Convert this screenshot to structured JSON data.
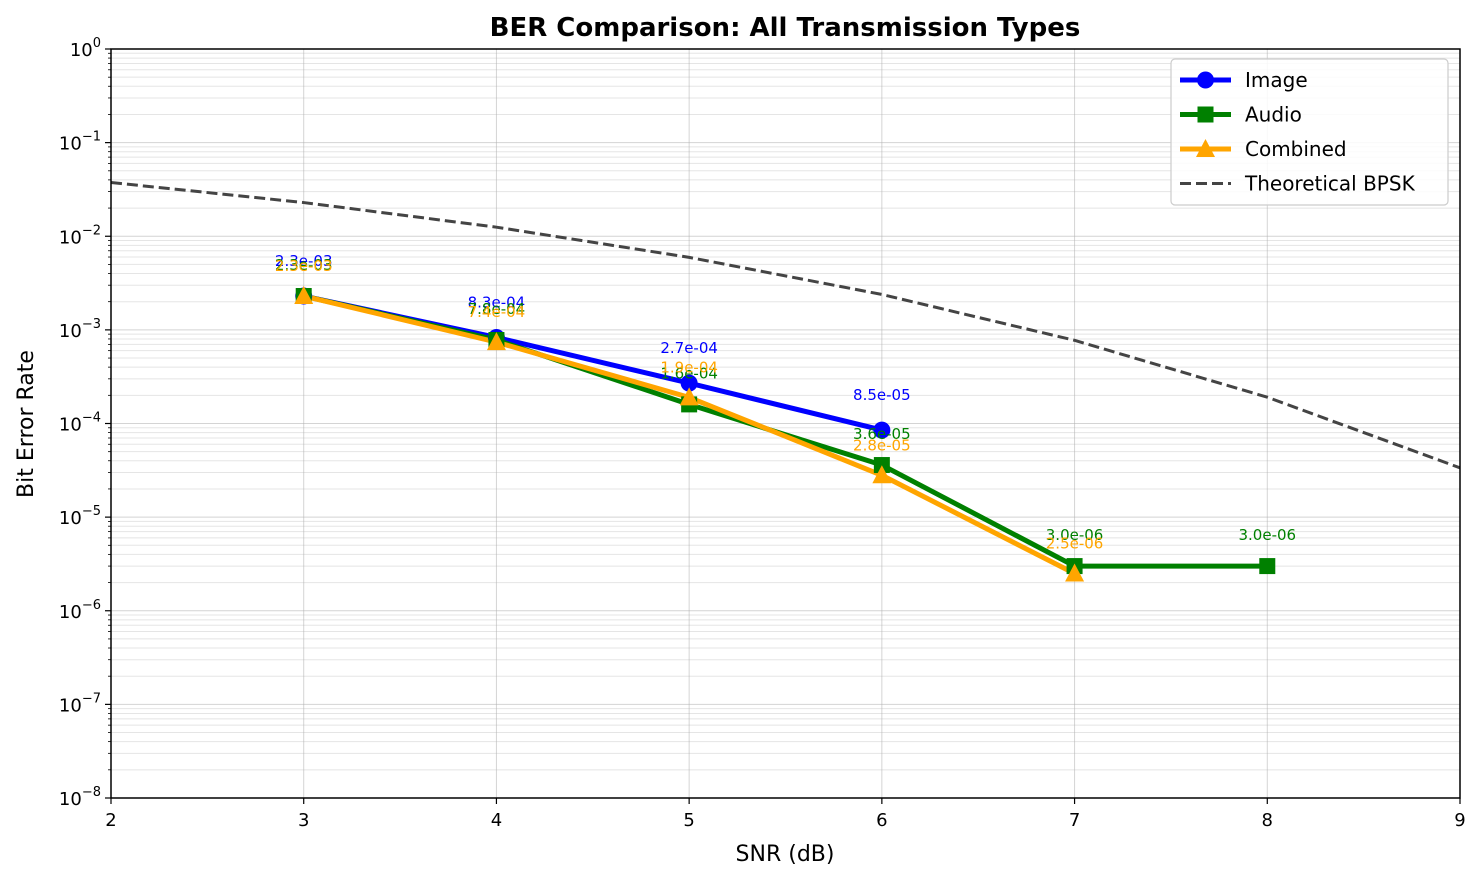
{
  "chart_data": {
    "type": "line",
    "title": "BER Comparison: All Transmission Types",
    "xlabel": "SNR (dB)",
    "ylabel": "Bit Error Rate",
    "xlim": [
      2,
      9
    ],
    "ylim": [
      1e-08,
      1
    ],
    "yscale": "log",
    "grid": true,
    "legend_position": "top-right",
    "x_ticks": [
      2,
      3,
      4,
      5,
      6,
      7,
      8,
      9
    ],
    "y_tick_exponents": [
      -8,
      -7,
      -6,
      -5,
      -4,
      -3,
      -2,
      -1,
      0
    ],
    "y_tick_base": "10",
    "series": [
      {
        "name": "Image",
        "color": "#0000ff",
        "marker": "circle",
        "x": [
          3,
          4,
          5,
          6
        ],
        "y": [
          0.0023,
          0.00083,
          0.00027,
          8.5e-05
        ],
        "labels": [
          "2.3e-03",
          "8.3e-04",
          "2.7e-04",
          "8.5e-05"
        ]
      },
      {
        "name": "Audio",
        "color": "#008000",
        "marker": "square",
        "x": [
          3,
          4,
          5,
          6,
          7,
          8
        ],
        "y": [
          0.0023,
          0.00078,
          0.00016,
          3.6e-05,
          3e-06,
          3e-06
        ],
        "labels": [
          "2.3e-03",
          "7.8e-04",
          "1.6e-04",
          "3.6e-05",
          "3.0e-06",
          "3.0e-06"
        ]
      },
      {
        "name": "Combined",
        "color": "#ffa500",
        "marker": "triangle",
        "x": [
          3,
          4,
          5,
          6,
          7
        ],
        "y": [
          0.0023,
          0.00074,
          0.00019,
          2.8e-05,
          2.5e-06
        ],
        "labels": [
          "2.3e-03",
          "7.4e-04",
          "1.9e-04",
          "2.8e-05",
          "2.5e-06"
        ]
      },
      {
        "name": "Theoretical BPSK",
        "color": "#444444",
        "marker": "none",
        "dashed": true,
        "formula": "0.5*erfc(sqrt(10^(SNR/10)))",
        "x": [
          2,
          3,
          4,
          5,
          6,
          7,
          8,
          9
        ],
        "y": [
          0.0375,
          0.0229,
          0.0125,
          0.00595,
          0.00239,
          0.000773,
          0.000191,
          3.36e-05
        ]
      }
    ]
  }
}
